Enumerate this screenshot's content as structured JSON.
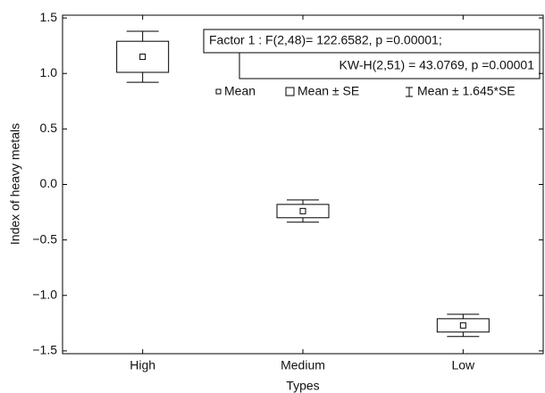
{
  "chart_data": {
    "type": "box",
    "xlabel": "Types",
    "ylabel": "Index of heavy metals",
    "categories": [
      "High",
      "Medium",
      "Low"
    ],
    "means": [
      1.15,
      -0.24,
      -1.27
    ],
    "se_lower": [
      1.01,
      -0.3,
      -1.33
    ],
    "se_upper": [
      1.29,
      -0.18,
      -1.21
    ],
    "ci_lower": [
      0.92,
      -0.34,
      -1.37
    ],
    "ci_upper": [
      1.38,
      -0.14,
      -1.17
    ],
    "legend": [
      "Mean",
      "Mean ± SE",
      "Mean ± 1.645*SE"
    ],
    "annotations": [
      "Factor 1 :  F(2,48)=  122.6582,  p =0.00001;",
      "KW-H(2,51) = 43.0769,  p =0.00001"
    ],
    "ylim": [
      -1.525,
      1.525
    ],
    "yticks": [
      {
        "value": -1.5,
        "label": "−1.5"
      },
      {
        "value": -1.0,
        "label": "−1.0"
      },
      {
        "value": -0.5,
        "label": "−0.5"
      },
      {
        "value": 0,
        "label": "0.0"
      },
      0.5,
      {
        "value": 1.0,
        "label": "1.0"
      },
      1.5
    ],
    "color": "#000000"
  }
}
